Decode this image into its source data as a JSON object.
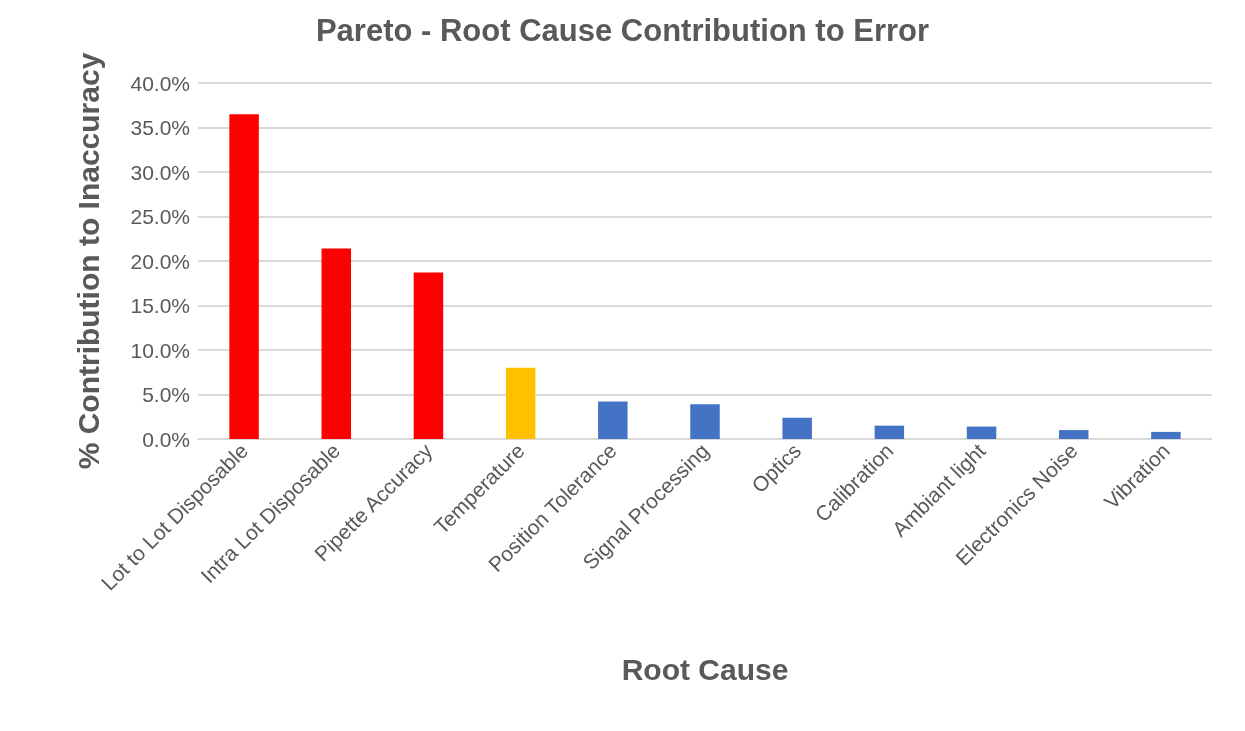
{
  "chart_data": {
    "type": "bar",
    "title": "Pareto - Root Cause Contribution to Error",
    "xlabel": "Root Cause",
    "ylabel": "% Contribution to Inaccuracy",
    "categories": [
      "Lot to Lot Disposable",
      "Intra Lot Disposable",
      "Pipette Accuracy",
      "Temperature",
      "Position Tolerance",
      "Signal Processing",
      "Optics",
      "Calibration",
      "Ambiant light",
      "Electronics Noise",
      "Vibration"
    ],
    "values": [
      36.5,
      21.4,
      18.7,
      8.0,
      4.2,
      3.9,
      2.4,
      1.5,
      1.4,
      1.0,
      0.8
    ],
    "colors": [
      "#ff0000",
      "#ff0000",
      "#ff0000",
      "#ffc000",
      "#4472c4",
      "#4472c4",
      "#4472c4",
      "#4472c4",
      "#4472c4",
      "#4472c4",
      "#4472c4"
    ],
    "ylim": [
      0,
      40
    ],
    "yticks": [
      {
        "value": 0,
        "label": "0.0%"
      },
      {
        "value": 5,
        "label": "5.0%"
      },
      {
        "value": 10,
        "label": "10.0%"
      },
      {
        "value": 15,
        "label": "15.0%"
      },
      {
        "value": 20,
        "label": "20.0%"
      },
      {
        "value": 25,
        "label": "25.0%"
      },
      {
        "value": 30,
        "label": "30.0%"
      },
      {
        "value": 35,
        "label": "35.0%"
      },
      {
        "value": 40,
        "label": "40.0%"
      }
    ],
    "grid": "y"
  }
}
